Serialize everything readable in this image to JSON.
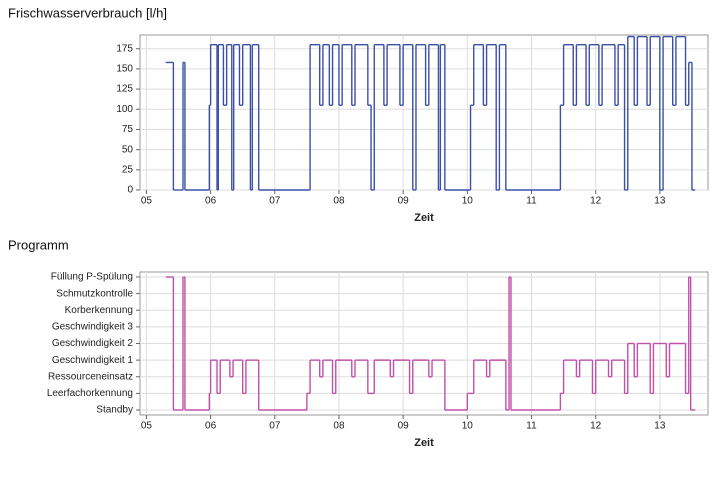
{
  "chart_data": [
    {
      "type": "line",
      "step": "post",
      "title": "Frischwasserverbrauch [l/h]",
      "x_label": "Zeit",
      "xlim": [
        4.9,
        13.75
      ],
      "xticks": [
        {
          "value": 5,
          "label": "05"
        },
        {
          "value": 6,
          "label": "06"
        },
        {
          "value": 7,
          "label": "07"
        },
        {
          "value": 8,
          "label": "08"
        },
        {
          "value": 9,
          "label": "09"
        },
        {
          "value": 10,
          "label": "10"
        },
        {
          "value": 11,
          "label": "11"
        },
        {
          "value": 12,
          "label": "12"
        },
        {
          "value": 13,
          "label": "13"
        }
      ],
      "ylim": [
        0,
        192
      ],
      "yticks": [
        0,
        25,
        50,
        75,
        100,
        125,
        150,
        175
      ],
      "grid": true,
      "series": [
        {
          "color": "#3b4fa8",
          "x": [
            5.3,
            5.42,
            5.57,
            5.6,
            5.98,
            6.0,
            6.1,
            6.12,
            6.2,
            6.25,
            6.33,
            6.36,
            6.45,
            6.5,
            6.62,
            6.65,
            6.75,
            7.55,
            7.7,
            7.75,
            7.85,
            7.9,
            8.0,
            8.05,
            8.2,
            8.25,
            8.45,
            8.5,
            8.55,
            8.7,
            8.75,
            8.95,
            9.0,
            9.15,
            9.2,
            9.35,
            9.4,
            9.55,
            9.58,
            9.65,
            10.05,
            10.1,
            10.25,
            10.3,
            10.45,
            10.5,
            10.6,
            11.45,
            11.5,
            11.65,
            11.7,
            11.85,
            11.9,
            12.05,
            12.1,
            12.3,
            12.35,
            12.45,
            12.5,
            12.6,
            12.65,
            12.8,
            12.85,
            13.0,
            13.05,
            13.2,
            13.25,
            13.4,
            13.45,
            13.5,
            13.55
          ],
          "values": [
            158,
            0,
            158,
            0,
            105,
            180,
            0,
            180,
            105,
            180,
            0,
            180,
            105,
            180,
            0,
            180,
            0,
            180,
            105,
            180,
            105,
            180,
            105,
            180,
            105,
            180,
            105,
            0,
            180,
            105,
            180,
            105,
            180,
            0,
            180,
            105,
            180,
            0,
            180,
            0,
            105,
            180,
            105,
            180,
            0,
            180,
            0,
            105,
            180,
            105,
            180,
            105,
            180,
            105,
            180,
            105,
            180,
            0,
            190,
            105,
            190,
            105,
            190,
            0,
            190,
            105,
            190,
            105,
            158,
            0,
            0
          ]
        }
      ]
    },
    {
      "type": "line",
      "step": "post",
      "title": "Programm",
      "x_label": "Zeit",
      "xlim": [
        4.9,
        13.75
      ],
      "xticks": [
        {
          "value": 5,
          "label": "05"
        },
        {
          "value": 6,
          "label": "06"
        },
        {
          "value": 7,
          "label": "07"
        },
        {
          "value": 8,
          "label": "08"
        },
        {
          "value": 9,
          "label": "09"
        },
        {
          "value": 10,
          "label": "10"
        },
        {
          "value": 11,
          "label": "11"
        },
        {
          "value": 12,
          "label": "12"
        },
        {
          "value": 13,
          "label": "13"
        }
      ],
      "ylim": [
        -0.3,
        8.3
      ],
      "yticks": [
        {
          "value": 8,
          "label": "Füllung P-Spülung"
        },
        {
          "value": 7,
          "label": "Schmutzkontrolle"
        },
        {
          "value": 6,
          "label": "Korberkennung"
        },
        {
          "value": 5,
          "label": "Geschwindigkeit 3"
        },
        {
          "value": 4,
          "label": "Geschwindigkeit 2"
        },
        {
          "value": 3,
          "label": "Geschwindigkeit 1"
        },
        {
          "value": 2,
          "label": "Ressourceneinsatz"
        },
        {
          "value": 1,
          "label": "Leerfachorkennung"
        },
        {
          "value": 0,
          "label": "Standby"
        }
      ],
      "grid": true,
      "series": [
        {
          "color": "#c050a8",
          "x": [
            5.3,
            5.42,
            5.57,
            5.6,
            5.98,
            6.0,
            6.1,
            6.15,
            6.3,
            6.35,
            6.5,
            6.55,
            6.75,
            7.5,
            7.55,
            7.7,
            7.75,
            7.9,
            7.95,
            8.2,
            8.25,
            8.45,
            8.55,
            8.8,
            8.85,
            9.1,
            9.15,
            9.4,
            9.45,
            9.65,
            10.0,
            10.1,
            10.3,
            10.35,
            10.6,
            10.65,
            10.68,
            11.45,
            11.5,
            11.7,
            11.75,
            11.95,
            12.0,
            12.2,
            12.25,
            12.45,
            12.5,
            12.6,
            12.65,
            12.85,
            12.9,
            13.1,
            13.15,
            13.4,
            13.45,
            13.48,
            13.55
          ],
          "values": [
            8,
            0,
            8,
            0,
            1,
            3,
            1,
            3,
            2,
            3,
            1,
            3,
            0,
            1,
            3,
            2,
            3,
            1,
            3,
            2,
            3,
            1,
            3,
            2,
            3,
            1,
            3,
            2,
            3,
            0,
            1,
            3,
            2,
            3,
            0,
            8,
            0,
            1,
            3,
            2,
            3,
            1,
            3,
            2,
            3,
            1,
            4,
            2,
            4,
            1,
            4,
            2,
            4,
            1,
            8,
            0,
            0
          ]
        }
      ]
    }
  ]
}
